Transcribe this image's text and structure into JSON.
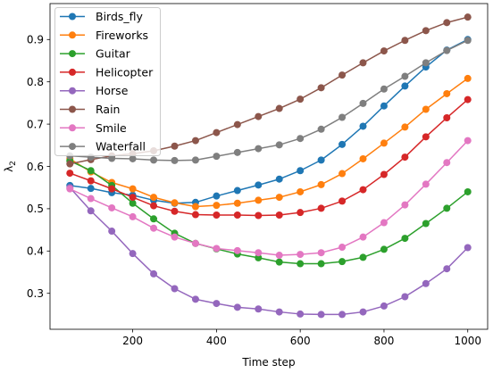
{
  "chart_data": {
    "type": "line",
    "title": "",
    "xlabel": "Time step",
    "ylabel": "λ",
    "ylabel_subscript": "2",
    "xlim": [
      2.5,
      1047.5
    ],
    "ylim": [
      0.215,
      0.985
    ],
    "xticks": [
      200,
      400,
      600,
      800,
      1000
    ],
    "yticks": [
      0.3,
      0.4,
      0.5,
      0.6,
      0.7,
      0.8,
      0.9
    ],
    "grid": false,
    "legend_position": "upper-left",
    "x": [
      50,
      100,
      150,
      200,
      250,
      300,
      350,
      400,
      450,
      500,
      550,
      600,
      650,
      700,
      750,
      800,
      850,
      900,
      950,
      1000
    ],
    "series": [
      {
        "name": "Birds_fly",
        "color": "#1f77b4",
        "values": [
          0.555,
          0.548,
          0.538,
          0.532,
          0.52,
          0.513,
          0.515,
          0.53,
          0.543,
          0.556,
          0.57,
          0.59,
          0.615,
          0.652,
          0.695,
          0.743,
          0.79,
          0.835,
          0.875,
          0.9
        ]
      },
      {
        "name": "Fireworks",
        "color": "#ff7f0e",
        "values": [
          0.618,
          0.587,
          0.562,
          0.547,
          0.527,
          0.514,
          0.505,
          0.508,
          0.513,
          0.52,
          0.527,
          0.54,
          0.557,
          0.583,
          0.618,
          0.655,
          0.693,
          0.735,
          0.772,
          0.808
        ]
      },
      {
        "name": "Guitar",
        "color": "#2ca02c",
        "values": [
          0.613,
          0.59,
          0.555,
          0.513,
          0.476,
          0.442,
          0.418,
          0.405,
          0.393,
          0.384,
          0.374,
          0.37,
          0.37,
          0.375,
          0.385,
          0.404,
          0.43,
          0.465,
          0.501,
          0.54
        ]
      },
      {
        "name": "Helicopter",
        "color": "#d62728",
        "values": [
          0.584,
          0.566,
          0.547,
          0.527,
          0.507,
          0.494,
          0.486,
          0.485,
          0.485,
          0.484,
          0.485,
          0.491,
          0.501,
          0.518,
          0.545,
          0.581,
          0.622,
          0.67,
          0.715,
          0.758
        ]
      },
      {
        "name": "Horse",
        "color": "#9467bd",
        "values": [
          0.55,
          0.495,
          0.447,
          0.394,
          0.346,
          0.311,
          0.286,
          0.276,
          0.267,
          0.263,
          0.256,
          0.251,
          0.25,
          0.25,
          0.256,
          0.27,
          0.292,
          0.323,
          0.358,
          0.408
        ]
      },
      {
        "name": "Rain",
        "color": "#8c564b",
        "values": [
          0.606,
          0.616,
          0.625,
          0.63,
          0.637,
          0.648,
          0.661,
          0.68,
          0.699,
          0.718,
          0.737,
          0.759,
          0.786,
          0.816,
          0.845,
          0.873,
          0.898,
          0.921,
          0.94,
          0.953
        ]
      },
      {
        "name": "Smile",
        "color": "#e377c2",
        "values": [
          0.547,
          0.524,
          0.502,
          0.481,
          0.454,
          0.433,
          0.418,
          0.406,
          0.401,
          0.396,
          0.39,
          0.392,
          0.396,
          0.409,
          0.433,
          0.467,
          0.509,
          0.558,
          0.609,
          0.661
        ]
      },
      {
        "name": "Waterfall",
        "color": "#7f7f7f",
        "values": [
          0.625,
          0.622,
          0.619,
          0.618,
          0.615,
          0.614,
          0.615,
          0.624,
          0.633,
          0.642,
          0.651,
          0.666,
          0.688,
          0.716,
          0.749,
          0.783,
          0.813,
          0.845,
          0.874,
          0.898
        ]
      }
    ]
  }
}
